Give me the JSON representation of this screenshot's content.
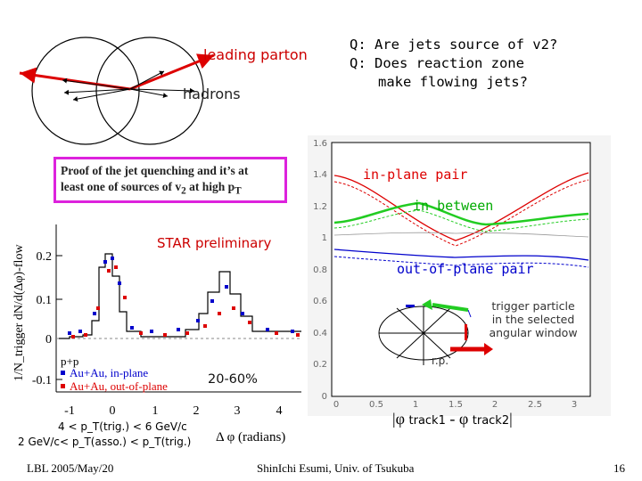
{
  "slide": {
    "cartoon": {
      "leading_parton_label": "leading parton",
      "hadrons_label": "hadrons"
    },
    "questions": [
      "Q: Are jets source of v2?",
      "Q: Does reaction zone",
      "make flowing jets?"
    ],
    "proof_box": {
      "line1": "Proof of the jet quenching and it’s at",
      "line2_prefix": "least one of sources of v",
      "line2_sub": "2",
      "line2_suffix": " at high p",
      "line2_sub2": "T",
      "border_color": "#dd22dd"
    },
    "left_plot": {
      "star_label": "STAR preliminary",
      "ylabel": "1/N_trigger dN/d(Δφ)-flow",
      "xlabel": "Δ φ (radians)",
      "yticks": [
        "0.2",
        "0.1",
        "0",
        "-0.1"
      ],
      "xticks": [
        "-1",
        "0",
        "1",
        "2",
        "3",
        "4"
      ],
      "legend": [
        "p+p",
        "Au+Au, in-plane",
        "Au+Au, out-of-plane"
      ],
      "centrality": "20-60%",
      "cut1": "4 < p_T(trig.) < 6 GeV/c",
      "cut2": "2 GeV/c< p_T(asso.) < p_T(trig.)"
    },
    "right_plot": {
      "yticks": [
        "1.6",
        "1.4",
        "1.2",
        "1",
        "0.8",
        "0.6",
        "0.4",
        "0.2",
        "0"
      ],
      "xticks": [
        "0",
        "0.5",
        "1",
        "1.5",
        "2",
        "2.5",
        "3"
      ],
      "label_inplane": "in-plane pair",
      "label_inbetween": "in between",
      "label_outplane": "out-of-plane pair",
      "trigger_text": [
        "trigger particle",
        "in the selected",
        "angular window"
      ],
      "rp_label": "r.p.",
      "xlabel_phi": "φ",
      "xlabel_track1": "track1",
      "xlabel_minus": "-",
      "xlabel_track2": "track2"
    },
    "footer": {
      "left": "LBL 2005/May/20",
      "center": "ShinIchi Esumi, Univ. of Tsukuba",
      "page": "16"
    },
    "colors": {
      "red": "#dd0000",
      "green": "#22cc22",
      "blue": "#0000cc",
      "magenta": "#dd22dd"
    }
  }
}
